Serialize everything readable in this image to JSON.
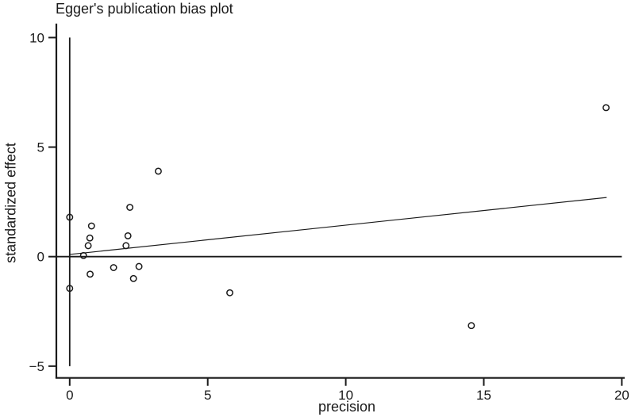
{
  "figure": {
    "background": "#ffffff",
    "ink_color": "#1a1a1a"
  },
  "chart_data": {
    "type": "scatter",
    "title": "Egger's publication bias plot",
    "xlabel": "precision",
    "ylabel": "standardized effect",
    "xlim": [
      -0.5,
      20.3
    ],
    "ylim": [
      -5.4,
      10.4
    ],
    "grid": false,
    "legend": "none",
    "marker": "open-circle",
    "x_ticks": [
      {
        "value": 0,
        "label": "0"
      },
      {
        "value": 5,
        "label": "5"
      },
      {
        "value": 10,
        "label": "10"
      },
      {
        "value": 15,
        "label": "15"
      },
      {
        "value": 20,
        "label": "20"
      }
    ],
    "y_ticks": [
      {
        "value": 10,
        "label": "10"
      },
      {
        "value": 5,
        "label": "5"
      },
      {
        "value": 0,
        "label": "0"
      },
      {
        "value": -5,
        "label": "−5"
      }
    ],
    "points": [
      {
        "x": 0,
        "y": 1.8
      },
      {
        "x": 0,
        "y": -1.45
      },
      {
        "x": 0.5,
        "y": 0.05
      },
      {
        "x": 0.67,
        "y": 0.5
      },
      {
        "x": 0.73,
        "y": 0.85
      },
      {
        "x": 0.79,
        "y": 1.4
      },
      {
        "x": 0.74,
        "y": -0.8
      },
      {
        "x": 1.59,
        "y": -0.5
      },
      {
        "x": 2.04,
        "y": 0.5
      },
      {
        "x": 2.11,
        "y": 0.95
      },
      {
        "x": 2.18,
        "y": 2.25
      },
      {
        "x": 2.31,
        "y": -1.0
      },
      {
        "x": 2.51,
        "y": -0.45
      },
      {
        "x": 3.21,
        "y": 3.9
      },
      {
        "x": 5.8,
        "y": -1.65
      },
      {
        "x": 14.55,
        "y": -3.15
      },
      {
        "x": 19.43,
        "y": 6.8
      }
    ],
    "egger_regression_line": {
      "x_start": 0,
      "y_start": 0.1,
      "x_end": 19.45,
      "y_end": 2.7
    },
    "horizontal_reference_line": {
      "y": 0
    },
    "vertical_reference_line": {
      "x": 0,
      "y_start": -5,
      "y_end": 10
    }
  }
}
